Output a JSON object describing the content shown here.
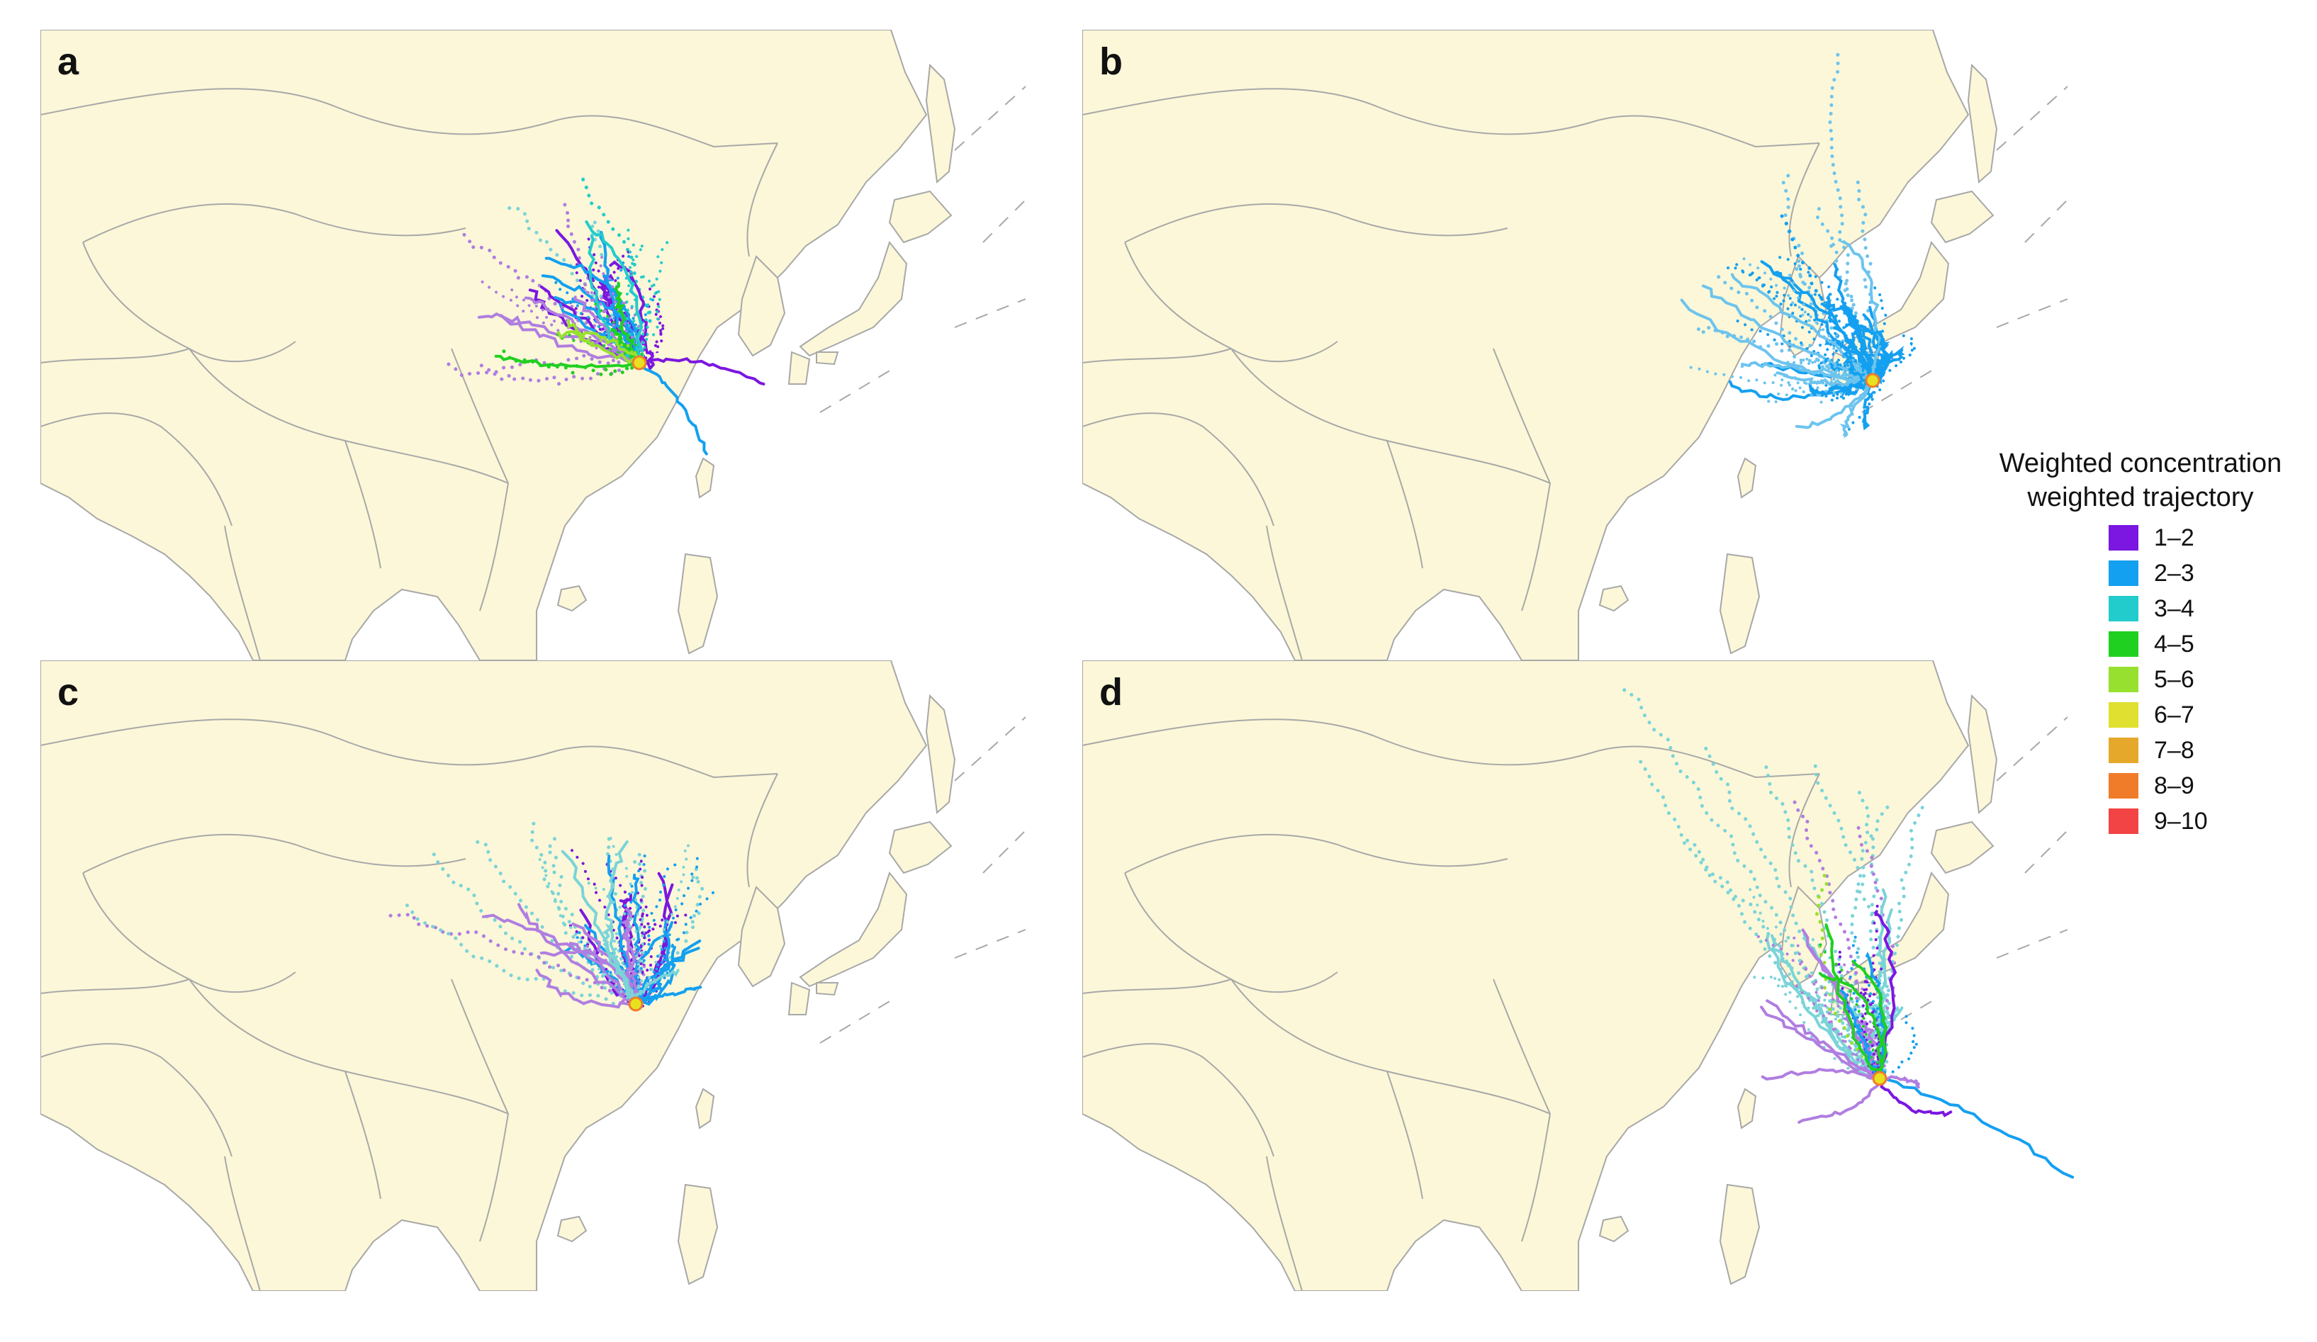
{
  "panels": [
    {
      "id": "a",
      "label": "a"
    },
    {
      "id": "b",
      "label": "b"
    },
    {
      "id": "c",
      "label": "c"
    },
    {
      "id": "d",
      "label": "d"
    }
  ],
  "map_style": {
    "land": "#fbf7d8",
    "border": "#a8a8a8",
    "sea": "#ffffff",
    "receptor_marker": "#e8e020"
  },
  "legend": {
    "title_line1": "Weighted concentration",
    "title_line2": "weighted trajectory",
    "items": [
      {
        "label": "1–2",
        "color": "#7b17e0"
      },
      {
        "label": "2–3",
        "color": "#14a0f0"
      },
      {
        "label": "3–4",
        "color": "#22cccc"
      },
      {
        "label": "4–5",
        "color": "#20d020"
      },
      {
        "label": "5–6",
        "color": "#98e030"
      },
      {
        "label": "6–7",
        "color": "#e0e030"
      },
      {
        "label": "7–8",
        "color": "#e6a82a"
      },
      {
        "label": "8–9",
        "color": "#f07c2a"
      },
      {
        "label": "9–10",
        "color": "#f24444"
      }
    ]
  },
  "trajectory_colors": {
    "violet": "#7b17e0",
    "lavender": "#b07ee0",
    "blue": "#14a0f0",
    "skyblue": "#6cc4ee",
    "cyan": "#22cccc",
    "palecyan": "#7ad4d8",
    "green": "#20d020",
    "lightgreen": "#98e030"
  }
}
